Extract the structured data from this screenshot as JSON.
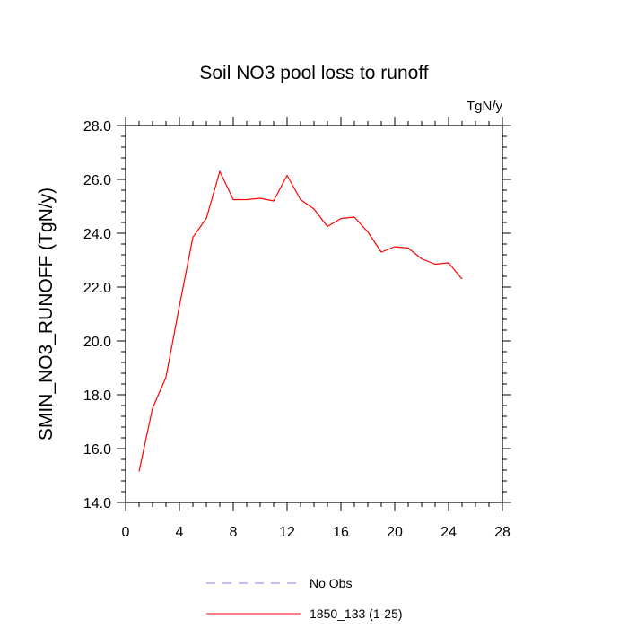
{
  "chart_data": {
    "type": "line",
    "title": "Soil NO3 pool loss to runoff",
    "units_label": "TgN/y",
    "xlabel": "",
    "ylabel": "SMIN_NO3_RUNOFF  (TgN/y)",
    "xlim": [
      0,
      28
    ],
    "ylim": [
      14.0,
      28.0
    ],
    "x_ticks": [
      0,
      4,
      8,
      12,
      16,
      20,
      24,
      28
    ],
    "x_tick_labels": [
      "0",
      "4",
      "8",
      "12",
      "16",
      "20",
      "24",
      "28"
    ],
    "y_ticks": [
      14.0,
      16.0,
      18.0,
      20.0,
      22.0,
      24.0,
      26.0,
      28.0
    ],
    "y_tick_labels": [
      "14.0",
      "16.0",
      "18.0",
      "20.0",
      "22.0",
      "24.0",
      "26.0",
      "28.0"
    ],
    "grid": false,
    "legend_position": "bottom",
    "series": [
      {
        "name": "1850_133 (1-25)",
        "color": "#ff0000",
        "style": "solid",
        "x": [
          1,
          2,
          3,
          4,
          5,
          6,
          7,
          8,
          9,
          10,
          11,
          12,
          13,
          14,
          15,
          16,
          17,
          18,
          19,
          20,
          21,
          22,
          23,
          24,
          25
        ],
        "values": [
          15.15,
          17.5,
          18.65,
          21.3,
          23.85,
          24.55,
          26.3,
          25.25,
          25.25,
          25.3,
          25.2,
          26.15,
          25.25,
          24.9,
          24.25,
          24.55,
          24.6,
          24.05,
          23.3,
          23.5,
          23.45,
          23.05,
          22.85,
          22.9,
          22.3
        ]
      }
    ],
    "legend": [
      {
        "label": "No Obs",
        "color": "#8080ff",
        "style": "dashed"
      },
      {
        "label": "1850_133 (1-25)",
        "color": "#ff0000",
        "style": "solid"
      }
    ]
  }
}
